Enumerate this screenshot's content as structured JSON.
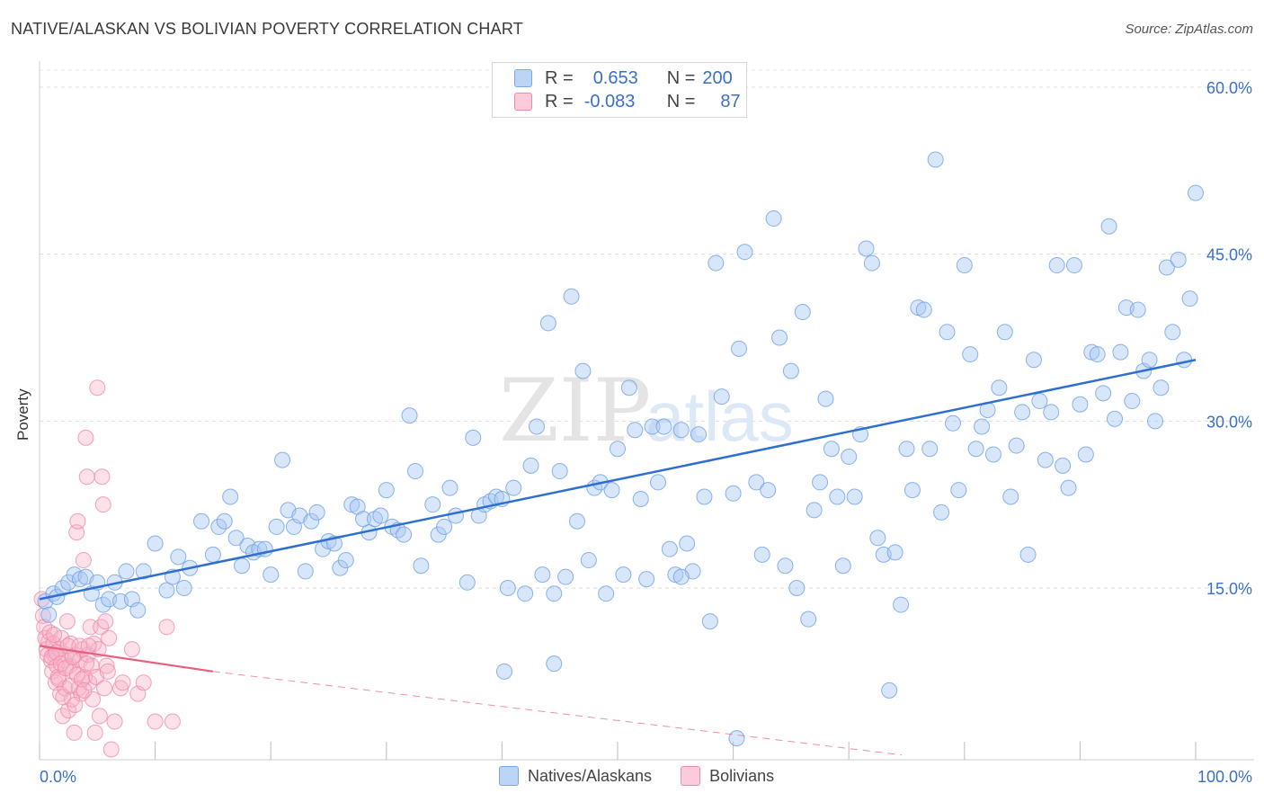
{
  "header": {
    "title": "NATIVE/ALASKAN VS BOLIVIAN POVERTY CORRELATION CHART",
    "source": "Source: ZipAtlas.com"
  },
  "watermark": {
    "zip": "ZIP",
    "atlas": "atlas"
  },
  "legend": {
    "rows": [
      {
        "r_label": "R =",
        "r_value": "0.653",
        "n_label": "N =",
        "n_value": "200",
        "color": "#a9c8f2"
      },
      {
        "r_label": "R =",
        "r_value": "-0.083",
        "n_label": "N =",
        "n_value": "87",
        "color": "#f7b3c8"
      }
    ]
  },
  "bottom_legend": {
    "items": [
      {
        "label": "Natives/Alaskans",
        "color": "#a9c8f2"
      },
      {
        "label": "Bolivians",
        "color": "#f7b3c8"
      }
    ]
  },
  "chart_data": {
    "type": "scatter",
    "title": "NATIVE/ALASKAN VS BOLIVIAN POVERTY CORRELATION CHART",
    "xlabel": "",
    "ylabel": "Poverty",
    "xlim": [
      0,
      100
    ],
    "ylim": [
      0,
      63
    ],
    "x_tick_labels": [
      {
        "value": 0,
        "label": "0.0%"
      },
      {
        "value": 100,
        "label": "100.0%"
      }
    ],
    "y_tick_labels": [
      {
        "value": 15,
        "label": "15.0%"
      },
      {
        "value": 30,
        "label": "30.0%"
      },
      {
        "value": 45,
        "label": "45.0%"
      },
      {
        "value": 60,
        "label": "60.0%"
      }
    ],
    "grid": "horizontal-dashed",
    "legend_position": "top-center",
    "colors": {
      "blue": "#6fa0e6",
      "blue_line": "#2e6fd0",
      "pink": "#f08aab",
      "pink_line": "#e8607f"
    },
    "series": [
      {
        "name": "Natives/Alaskans",
        "trend": {
          "x0": 0,
          "y0": 14.0,
          "x1": 100,
          "y1": 35.5
        },
        "points": [
          [
            0.5,
            13.8
          ],
          [
            0.8,
            12.6
          ],
          [
            1.2,
            14.5
          ],
          [
            1.5,
            14.2
          ],
          [
            2,
            15
          ],
          [
            2.5,
            15.5
          ],
          [
            3,
            16.2
          ],
          [
            3.5,
            15.8
          ],
          [
            4,
            16
          ],
          [
            4.5,
            14.5
          ],
          [
            5,
            15.5
          ],
          [
            5.5,
            13.5
          ],
          [
            6,
            14
          ],
          [
            6.5,
            15.5
          ],
          [
            7,
            13.8
          ],
          [
            7.5,
            16.5
          ],
          [
            8,
            14
          ],
          [
            8.5,
            13
          ],
          [
            9,
            16.5
          ],
          [
            10,
            19
          ],
          [
            11,
            14.8
          ],
          [
            11.5,
            16
          ],
          [
            12,
            17.8
          ],
          [
            12.5,
            15
          ],
          [
            13,
            16.8
          ],
          [
            14,
            21
          ],
          [
            15,
            18
          ],
          [
            15.5,
            20.5
          ],
          [
            16,
            21
          ],
          [
            16.5,
            23.2
          ],
          [
            17,
            19.5
          ],
          [
            17.5,
            17
          ],
          [
            18,
            18.8
          ],
          [
            18.5,
            18.2
          ],
          [
            19,
            18.5
          ],
          [
            19.5,
            18.5
          ],
          [
            20,
            16.2
          ],
          [
            20.5,
            20.5
          ],
          [
            21,
            26.5
          ],
          [
            21.5,
            22
          ],
          [
            22,
            20.5
          ],
          [
            22.5,
            21.5
          ],
          [
            23,
            16.5
          ],
          [
            23.5,
            21
          ],
          [
            24,
            21.8
          ],
          [
            24.5,
            18.5
          ],
          [
            25,
            19.2
          ],
          [
            25.5,
            19
          ],
          [
            26,
            16.8
          ],
          [
            26.5,
            17.5
          ],
          [
            27,
            22.5
          ],
          [
            27.5,
            22.3
          ],
          [
            28,
            21.2
          ],
          [
            28.5,
            20
          ],
          [
            29,
            21.2
          ],
          [
            29.5,
            21.5
          ],
          [
            30,
            23.8
          ],
          [
            30.5,
            20.5
          ],
          [
            31,
            20.2
          ],
          [
            31.5,
            19.8
          ],
          [
            32,
            30.5
          ],
          [
            32.5,
            25.5
          ],
          [
            33,
            17
          ],
          [
            34,
            22.5
          ],
          [
            34.5,
            19.8
          ],
          [
            35,
            20.5
          ],
          [
            35.5,
            24
          ],
          [
            36,
            21.5
          ],
          [
            37,
            15.5
          ],
          [
            37.5,
            28.5
          ],
          [
            38,
            21.5
          ],
          [
            38.5,
            22.5
          ],
          [
            39,
            22.8
          ],
          [
            39.5,
            23.2
          ],
          [
            40,
            23
          ],
          [
            40.5,
            15
          ],
          [
            41,
            24
          ],
          [
            42,
            14.5
          ],
          [
            42.5,
            26
          ],
          [
            43,
            29.5
          ],
          [
            43.5,
            16.2
          ],
          [
            44,
            38.8
          ],
          [
            44.5,
            14.5
          ],
          [
            45,
            25.5
          ],
          [
            45.5,
            16
          ],
          [
            46,
            41.2
          ],
          [
            46.5,
            21
          ],
          [
            47,
            34.5
          ],
          [
            47.5,
            17.5
          ],
          [
            48,
            24
          ],
          [
            48.5,
            24.5
          ],
          [
            49,
            14.5
          ],
          [
            49.5,
            23.8
          ],
          [
            50,
            27.5
          ],
          [
            50.5,
            16.2
          ],
          [
            51,
            33
          ],
          [
            51.5,
            29.2
          ],
          [
            52,
            23
          ],
          [
            52.5,
            15.8
          ],
          [
            53,
            29.5
          ],
          [
            53.5,
            24.5
          ],
          [
            54,
            29.5
          ],
          [
            54.5,
            18.5
          ],
          [
            55,
            16.2
          ],
          [
            55.5,
            29.2
          ],
          [
            56,
            19
          ],
          [
            56.5,
            16.5
          ],
          [
            57,
            28.8
          ],
          [
            57.5,
            23.2
          ],
          [
            58,
            12
          ],
          [
            58.5,
            44.2
          ],
          [
            59,
            32.2
          ],
          [
            60,
            23.5
          ],
          [
            60.5,
            36.5
          ],
          [
            61,
            45.2
          ],
          [
            62,
            24.5
          ],
          [
            62.5,
            18
          ],
          [
            63,
            23.8
          ],
          [
            63.5,
            48.2
          ],
          [
            64,
            37.5
          ],
          [
            64.5,
            17
          ],
          [
            65,
            34.5
          ],
          [
            65.5,
            15
          ],
          [
            66,
            39.8
          ],
          [
            66.5,
            12.2
          ],
          [
            67,
            22
          ],
          [
            67.5,
            24.5
          ],
          [
            68,
            32
          ],
          [
            68.5,
            27.5
          ],
          [
            69,
            23.2
          ],
          [
            69.5,
            17
          ],
          [
            70,
            26.8
          ],
          [
            70.5,
            23.2
          ],
          [
            71,
            28.8
          ],
          [
            71.5,
            45.5
          ],
          [
            72,
            44.2
          ],
          [
            72.5,
            19.5
          ],
          [
            73,
            18
          ],
          [
            73.5,
            5.8
          ],
          [
            74,
            18.2
          ],
          [
            74.5,
            13.5
          ],
          [
            75,
            27.5
          ],
          [
            75.5,
            23.8
          ],
          [
            76,
            40.2
          ],
          [
            76.5,
            40
          ],
          [
            77,
            27.5
          ],
          [
            77.5,
            53.5
          ],
          [
            78,
            21.8
          ],
          [
            78.5,
            38
          ],
          [
            79,
            29.8
          ],
          [
            79.5,
            23.8
          ],
          [
            80,
            44
          ],
          [
            80.5,
            36
          ],
          [
            81,
            27.5
          ],
          [
            81.5,
            29.5
          ],
          [
            82,
            31
          ],
          [
            82.5,
            27
          ],
          [
            83,
            33
          ],
          [
            83.5,
            38
          ],
          [
            84,
            23.2
          ],
          [
            84.5,
            27.8
          ],
          [
            85,
            30.8
          ],
          [
            85.5,
            18
          ],
          [
            86,
            35.5
          ],
          [
            86.5,
            31.8
          ],
          [
            87,
            26.5
          ],
          [
            87.5,
            30.8
          ],
          [
            88,
            44
          ],
          [
            88.5,
            26
          ],
          [
            89,
            24
          ],
          [
            89.5,
            44
          ],
          [
            90,
            31.5
          ],
          [
            90.5,
            27
          ],
          [
            91,
            36.2
          ],
          [
            91.5,
            36
          ],
          [
            92,
            32.5
          ],
          [
            92.5,
            47.5
          ],
          [
            93,
            30.2
          ],
          [
            93.5,
            36.2
          ],
          [
            94,
            40.2
          ],
          [
            94.5,
            31.8
          ],
          [
            95,
            40
          ],
          [
            95.5,
            34.5
          ],
          [
            96,
            35.5
          ],
          [
            96.5,
            30
          ],
          [
            97,
            33
          ],
          [
            97.5,
            43.8
          ],
          [
            98,
            38
          ],
          [
            98.5,
            44.5
          ],
          [
            99,
            35.5
          ],
          [
            99.5,
            41
          ],
          [
            100,
            50.5
          ],
          [
            60.3,
            1.5
          ],
          [
            40.2,
            7.5
          ],
          [
            44.5,
            8.2
          ],
          [
            55.5,
            16
          ]
        ]
      },
      {
        "name": "Bolivians",
        "trend": {
          "x0": 0,
          "y0": 9.8,
          "x1": 15,
          "y1": 7.5,
          "dashed_to": {
            "x": 100,
            "y": -3.2
          }
        },
        "points": [
          [
            0.2,
            14
          ],
          [
            0.3,
            12.5
          ],
          [
            0.4,
            11.5
          ],
          [
            0.5,
            10.5
          ],
          [
            0.6,
            9.5
          ],
          [
            0.7,
            9
          ],
          [
            0.8,
            10.2
          ],
          [
            0.9,
            11
          ],
          [
            1,
            8.5
          ],
          [
            1.1,
            7.5
          ],
          [
            1.2,
            10
          ],
          [
            1.3,
            9
          ],
          [
            1.4,
            6.5
          ],
          [
            1.5,
            8
          ],
          [
            1.6,
            7
          ],
          [
            1.7,
            9.5
          ],
          [
            1.8,
            5.5
          ],
          [
            1.9,
            10.5
          ],
          [
            2,
            3.5
          ],
          [
            2.1,
            8.5
          ],
          [
            2.2,
            6
          ],
          [
            2.3,
            9
          ],
          [
            2.4,
            12
          ],
          [
            2.5,
            4
          ],
          [
            2.6,
            8
          ],
          [
            2.7,
            10
          ],
          [
            2.8,
            5
          ],
          [
            2.9,
            7.5
          ],
          [
            3,
            2
          ],
          [
            3.1,
            9
          ],
          [
            3.2,
            20
          ],
          [
            3.3,
            21
          ],
          [
            3.4,
            6
          ],
          [
            3.5,
            8.5
          ],
          [
            3.6,
            5.5
          ],
          [
            3.7,
            9.5
          ],
          [
            3.8,
            17.5
          ],
          [
            3.9,
            7
          ],
          [
            4,
            28.5
          ],
          [
            4.1,
            25
          ],
          [
            4.2,
            9
          ],
          [
            4.3,
            6.5
          ],
          [
            4.4,
            11.5
          ],
          [
            4.5,
            8
          ],
          [
            4.6,
            5
          ],
          [
            4.7,
            10
          ],
          [
            4.8,
            2
          ],
          [
            4.9,
            7
          ],
          [
            5,
            33
          ],
          [
            5.1,
            9.5
          ],
          [
            5.2,
            3.5
          ],
          [
            5.3,
            11.5
          ],
          [
            5.4,
            25
          ],
          [
            5.5,
            22.5
          ],
          [
            5.6,
            6
          ],
          [
            5.7,
            12
          ],
          [
            5.8,
            8
          ],
          [
            5.9,
            7.5
          ],
          [
            6,
            10.5
          ],
          [
            6.2,
            0.5
          ],
          [
            6.5,
            3
          ],
          [
            7,
            6
          ],
          [
            7.2,
            6.5
          ],
          [
            8,
            9.5
          ],
          [
            8.5,
            5.5
          ],
          [
            9,
            6.5
          ],
          [
            10,
            3
          ],
          [
            11,
            11.5
          ],
          [
            11.5,
            3
          ],
          [
            1.05,
            8.8
          ],
          [
            1.25,
            10.8
          ],
          [
            1.45,
            9.2
          ],
          [
            1.65,
            6.8
          ],
          [
            1.85,
            8.2
          ],
          [
            2.05,
            5.2
          ],
          [
            2.25,
            7.8
          ],
          [
            2.45,
            9.8
          ],
          [
            2.65,
            6.2
          ],
          [
            2.85,
            8.8
          ],
          [
            3.05,
            4.5
          ],
          [
            3.25,
            7.2
          ],
          [
            3.45,
            9.8
          ],
          [
            3.65,
            6.8
          ],
          [
            3.85,
            5.8
          ],
          [
            4.05,
            8.2
          ],
          [
            4.25,
            9.8
          ]
        ]
      }
    ]
  }
}
